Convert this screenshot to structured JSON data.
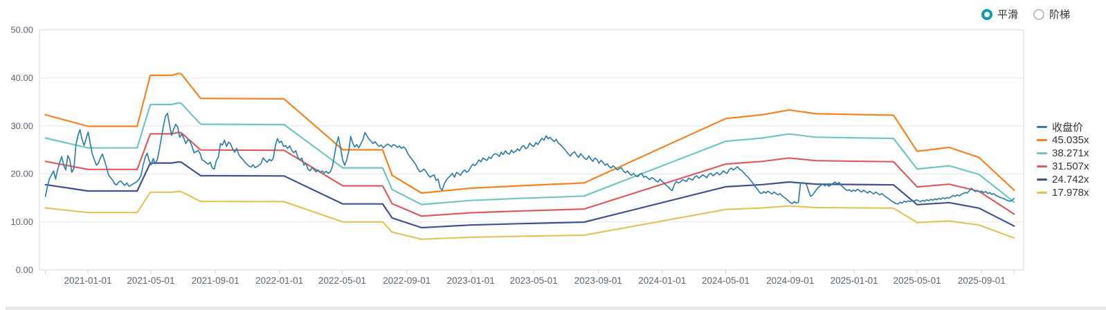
{
  "controls": {
    "smooth_label": "平滑",
    "step_label": "阶梯",
    "selected": "平滑",
    "accent_color": "#0a9dab"
  },
  "legend": {
    "items": [
      {
        "label": "收盘价",
        "slug": "close-price",
        "color": "#2f7ea9"
      },
      {
        "label": "45.035x",
        "slug": "pe-45x",
        "color": "#f5821f"
      },
      {
        "label": "38.271x",
        "slug": "pe-38x",
        "color": "#6ec6c2"
      },
      {
        "label": "31.507x",
        "slug": "pe-31x",
        "color": "#e05a5a"
      },
      {
        "label": "24.742x",
        "slug": "pe-24x",
        "color": "#414e91"
      },
      {
        "label": "17.978x",
        "slug": "pe-17x",
        "color": "#e4c25c"
      }
    ]
  },
  "colors": {
    "grid": "#e8e8e8",
    "border": "#d4d4d4",
    "axis_text": "#5b6670",
    "price_line": "#2f7ea9",
    "background": "#ffffff",
    "bottom_bar": "#e9e9e9"
  },
  "chart_data": {
    "type": "line",
    "title": "",
    "xlabel": "",
    "ylabel": "",
    "y_axis": {
      "min": 0,
      "max": 50,
      "tick_labels": [
        "0.00",
        "10.00",
        "20.00",
        "30.00",
        "40.00",
        "50.00"
      ],
      "grid": true
    },
    "x_axis": {
      "tick_dates": [
        "2021-01-01",
        "2021-05-01",
        "2021-09-01",
        "2022-01-01",
        "2022-05-01",
        "2022-09-01",
        "2023-01-01",
        "2023-05-01",
        "2023-09-01",
        "2024-01-01",
        "2024-05-01",
        "2024-09-01",
        "2025-01-01",
        "2025-05-01",
        "2025-09-01"
      ],
      "range_start": "2020-10-12",
      "range_end": "2025-11-02"
    },
    "pe_bands": {
      "note": "PE valuation bands; each band = base_points value scaled by multiplier/base_multiplier",
      "base_multiplier": 45.035,
      "base_points": [
        {
          "d": "2020-10-12",
          "v": 32.3
        },
        {
          "d": "2021-01-01",
          "v": 29.9
        },
        {
          "d": "2021-04-05",
          "v": 29.9
        },
        {
          "d": "2021-04-30",
          "v": 40.5
        },
        {
          "d": "2021-06-10",
          "v": 40.5
        },
        {
          "d": "2021-06-22",
          "v": 40.9
        },
        {
          "d": "2021-06-28",
          "v": 40.8
        },
        {
          "d": "2021-08-04",
          "v": 35.7
        },
        {
          "d": "2022-01-10",
          "v": 35.6
        },
        {
          "d": "2022-05-02",
          "v": 25.0
        },
        {
          "d": "2022-07-17",
          "v": 25.0
        },
        {
          "d": "2022-08-04",
          "v": 19.7
        },
        {
          "d": "2022-09-29",
          "v": 16.0
        },
        {
          "d": "2023-01-01",
          "v": 17.0
        },
        {
          "d": "2023-04-01",
          "v": 17.5
        },
        {
          "d": "2023-08-05",
          "v": 18.1
        },
        {
          "d": "2024-05-01",
          "v": 31.5
        },
        {
          "d": "2024-07-10",
          "v": 32.3
        },
        {
          "d": "2024-08-30",
          "v": 33.3
        },
        {
          "d": "2024-10-20",
          "v": 32.5
        },
        {
          "d": "2025-03-17",
          "v": 32.2
        },
        {
          "d": "2025-05-01",
          "v": 24.7
        },
        {
          "d": "2025-07-01",
          "v": 25.5
        },
        {
          "d": "2025-08-27",
          "v": 23.4
        },
        {
          "d": "2025-11-02",
          "v": 16.6
        }
      ],
      "bands": [
        {
          "label": "45.035x",
          "multiplier": 45.035,
          "color": "#f5821f"
        },
        {
          "label": "38.271x",
          "multiplier": 38.271,
          "color": "#6ec6c2"
        },
        {
          "label": "31.507x",
          "multiplier": 31.507,
          "color": "#e05a5a"
        },
        {
          "label": "24.742x",
          "multiplier": 24.742,
          "color": "#414e91"
        },
        {
          "label": "17.978x",
          "multiplier": 17.978,
          "color": "#e4c25c"
        }
      ]
    },
    "price_series": {
      "name": "收盘价",
      "color": "#2f7ea9",
      "start_date": "2020-10-12",
      "end_date": "2025-11-02",
      "sampling": "uniform",
      "values": [
        15.3,
        17.4,
        19.0,
        19.8,
        20.6,
        18.9,
        20.9,
        22.3,
        23.6,
        21.8,
        20.8,
        23.8,
        22.9,
        20.3,
        21.2,
        26.0,
        28.0,
        29.2,
        27.2,
        25.9,
        27.3,
        28.7,
        26.4,
        24.2,
        23.0,
        21.8,
        22.2,
        23.3,
        24.1,
        22.8,
        21.4,
        19.8,
        19.2,
        18.7,
        17.9,
        17.7,
        18.3,
        18.5,
        18.0,
        17.6,
        18.1,
        17.4,
        17.6,
        17.9,
        18.1,
        18.4,
        18.9,
        19.7,
        21.8,
        23.4,
        24.3,
        22.7,
        21.9,
        23.2,
        22.1,
        23.0,
        25.1,
        27.6,
        30.0,
        32.0,
        32.6,
        30.2,
        28.0,
        29.3,
        30.3,
        29.8,
        27.6,
        28.3,
        27.4,
        26.3,
        27.1,
        26.8,
        25.8,
        24.4,
        24.6,
        24.9,
        24.2,
        22.9,
        22.7,
        22.3,
        22.0,
        22.4,
        21.2,
        21.0,
        22.8,
        23.5,
        26.3,
        26.0,
        27.0,
        25.7,
        26.6,
        26.2,
        25.2,
        24.5,
        25.3,
        24.0,
        23.4,
        23.0,
        22.4,
        22.0,
        21.6,
        21.4,
        21.9,
        21.3,
        21.5,
        21.8,
        22.2,
        23.3,
        22.8,
        22.4,
        23.0,
        22.7,
        23.3,
        25.9,
        27.3,
        26.5,
        26.8,
        25.7,
        25.9,
        25.3,
        25.8,
        24.9,
        24.4,
        24.8,
        23.5,
        22.9,
        23.3,
        21.8,
        22.2,
        21.0,
        20.6,
        21.3,
        20.9,
        20.4,
        20.8,
        20.3,
        20.6,
        20.2,
        20.5,
        20.1,
        20.4,
        21.5,
        23.8,
        26.2,
        27.7,
        25.5,
        23.0,
        21.8,
        22.8,
        24.6,
        27.8,
        26.4,
        25.6,
        26.1,
        25.4,
        26.3,
        27.1,
        28.6,
        27.9,
        27.2,
        26.8,
        26.3,
        26.7,
        26.1,
        25.7,
        26.0,
        25.4,
        25.8,
        26.2,
        26.0,
        25.6,
        26.1,
        25.9,
        25.5,
        25.8,
        25.3,
        25.6,
        25.2,
        24.3,
        23.6,
        23.1,
        22.5,
        21.9,
        21.0,
        20.4,
        20.6,
        21.0,
        20.5,
        19.8,
        19.3,
        19.6,
        19.8,
        18.6,
        18.9,
        17.0,
        16.6,
        17.9,
        18.7,
        19.2,
        19.6,
        20.1,
        19.3,
        20.3,
        20.0,
        19.7,
        20.4,
        20.8,
        20.3,
        20.6,
        21.4,
        22.0,
        21.7,
        22.2,
        22.9,
        22.5,
        23.3,
        23.0,
        22.8,
        23.5,
        23.2,
        23.9,
        24.2,
        24.0,
        23.6,
        24.5,
        24.0,
        24.8,
        24.3,
        24.1,
        24.9,
        24.4,
        24.7,
        25.2,
        24.8,
        25.6,
        25.9,
        25.2,
        25.5,
        26.4,
        25.9,
        25.7,
        26.5,
        26.1,
        26.8,
        27.4,
        27.0,
        27.9,
        27.3,
        27.6,
        27.1,
        26.7,
        27.2,
        26.4,
        26.1,
        25.6,
        25.2,
        24.6,
        24.1,
        23.7,
        24.3,
        24.6,
        23.9,
        23.4,
        24.2,
        23.7,
        23.2,
        23.0,
        23.7,
        23.1,
        22.6,
        23.3,
        23.0,
        22.2,
        22.8,
        22.4,
        21.8,
        22.1,
        21.5,
        21.2,
        21.7,
        21.3,
        20.8,
        21.1,
        21.3,
        20.6,
        20.2,
        20.6,
        20.0,
        19.7,
        20.1,
        19.6,
        19.4,
        19.9,
        20.1,
        19.3,
        19.5,
        19.1,
        18.8,
        19.2,
        19.0,
        18.5,
        18.3,
        18.9,
        18.4,
        18.1,
        17.6,
        17.3,
        16.8,
        16.5,
        17.7,
        18.4,
        18.1,
        18.3,
        18.8,
        18.6,
        18.4,
        19.1,
        18.9,
        18.7,
        19.3,
        19.6,
        19.1,
        19.4,
        19.8,
        19.5,
        19.2,
        19.9,
        20.1,
        19.6,
        19.9,
        20.3,
        19.8,
        20.0,
        20.6,
        20.3,
        20.1,
        20.9,
        21.2,
        20.8,
        21.1,
        21.5,
        21.0,
        20.7,
        20.3,
        19.8,
        19.4,
        18.9,
        18.4,
        17.8,
        17.2,
        16.7,
        16.1,
        15.9,
        16.3,
        16.0,
        16.4,
        16.1,
        15.8,
        16.2,
        15.9,
        15.6,
        15.9,
        15.4,
        15.1,
        14.8,
        14.4,
        14.0,
        13.8,
        14.2,
        13.9,
        14.1,
        18.0,
        18.2,
        18.0,
        17.8,
        16.4,
        15.3,
        15.6,
        16.2,
        16.8,
        17.3,
        17.6,
        17.9,
        17.5,
        17.8,
        17.4,
        17.7,
        18.0,
        18.3,
        17.9,
        18.2,
        17.6,
        17.2,
        16.8,
        16.5,
        16.7,
        16.3,
        16.6,
        16.4,
        16.8,
        16.5,
        16.2,
        16.6,
        16.3,
        16.0,
        16.4,
        16.1,
        15.8,
        16.2,
        15.9,
        15.6,
        15.9,
        15.5,
        15.2,
        14.9,
        14.6,
        14.3,
        14.0,
        13.8,
        13.7,
        14.1,
        13.9,
        14.3,
        14.1,
        14.4,
        14.2,
        14.5,
        14.3,
        14.6,
        14.4,
        14.2,
        14.5,
        14.3,
        14.6,
        14.4,
        14.7,
        14.5,
        14.8,
        14.6,
        14.9,
        14.7,
        15.0,
        14.8,
        15.1,
        14.9,
        15.2,
        15.5,
        15.3,
        15.6,
        15.4,
        15.7,
        15.9,
        16.1,
        16.0,
        16.5,
        17.0,
        16.6,
        16.3,
        16.5,
        16.2,
        16.4,
        16.1,
        16.3,
        15.9,
        16.1,
        15.7,
        15.9,
        15.5,
        15.3,
        15.1,
        15.0,
        14.8,
        14.6,
        14.4,
        14.3,
        14.5,
        14.9
      ]
    }
  }
}
